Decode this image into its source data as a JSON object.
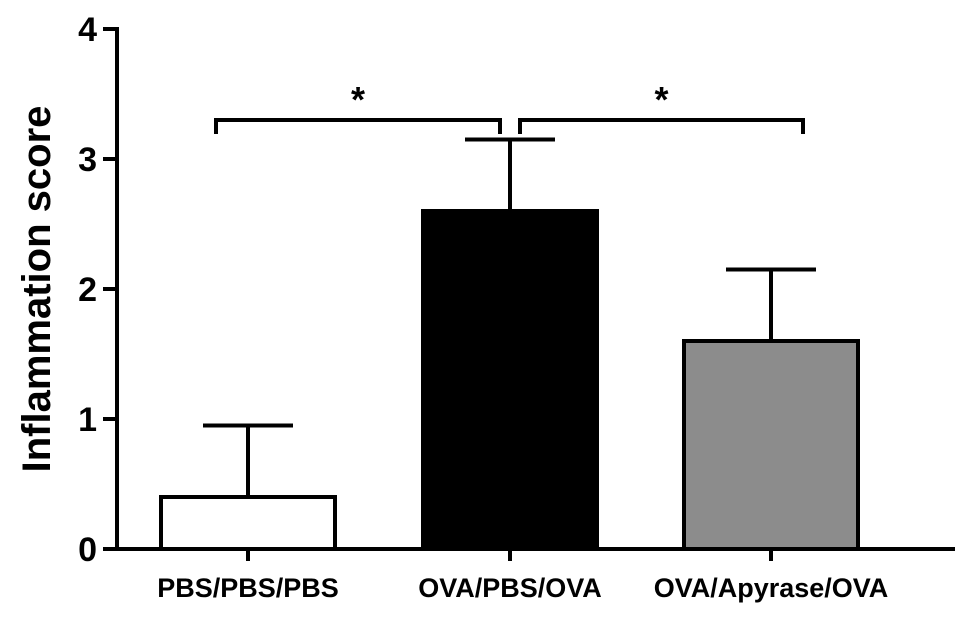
{
  "chart_data": {
    "type": "bar",
    "title": "",
    "xlabel": "",
    "ylabel": "Inflammation score",
    "ylim": [
      0,
      4
    ],
    "yticks": [
      "0",
      "1",
      "2",
      "3",
      "4"
    ],
    "grid": false,
    "categories": [
      "PBS/PBS/PBS",
      "OVA/PBS/OVA",
      "OVA/Apyrase/OVA"
    ],
    "values": [
      0.4,
      2.6,
      1.6
    ],
    "error_upper": [
      0.55,
      0.55,
      0.55
    ],
    "colors": [
      "#ffffff",
      "#000000",
      "#8c8c8c"
    ],
    "significance": [
      {
        "from": 0,
        "to": 1,
        "y": 3.3,
        "label": "*"
      },
      {
        "from": 1,
        "to": 2,
        "y": 3.3,
        "label": "*"
      }
    ]
  }
}
